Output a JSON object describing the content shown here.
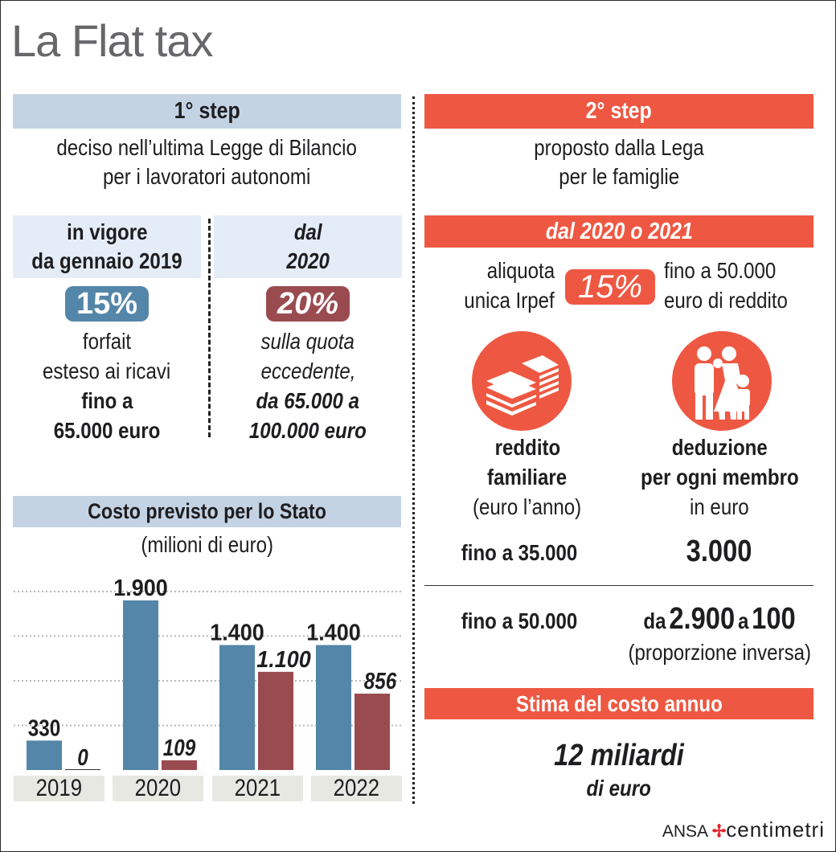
{
  "title": "La Flat tax",
  "step1": {
    "header": "1° step",
    "subtitle_lines": [
      "deciso nell’ultima Legge di Bilancio",
      "per i lavoratori autonomi"
    ],
    "col_a": {
      "header_lines": [
        "in vigore",
        "da gennaio 2019"
      ],
      "rate": "15%",
      "rate_color": "#5386a8",
      "desc_lines": [
        "forfait",
        "esteso ai ricavi"
      ],
      "desc_bold_lines": [
        "fino a",
        "65.000 euro"
      ]
    },
    "col_b": {
      "header_lines": [
        "dal",
        "2020"
      ],
      "rate": "20%",
      "rate_color": "#9a4b50",
      "desc_lines": [
        "sulla quota",
        "eccedente,"
      ],
      "desc_bold_lines": [
        "da 65.000 a",
        "100.000 euro"
      ]
    }
  },
  "cost": {
    "header": "Costo previsto per lo Stato",
    "unit": "(milioni di euro)"
  },
  "chart_data": {
    "type": "bar",
    "title": "Costo previsto per lo Stato",
    "subtitle": "(milioni di euro)",
    "categories": [
      "2019",
      "2020",
      "2021",
      "2022"
    ],
    "series": [
      {
        "name": "in vigore da gennaio 2019 (15%)",
        "color": "#5386a8",
        "values": [
          330,
          1900,
          1400,
          1400
        ],
        "labels": [
          "330",
          "1.900",
          "1.400",
          "1.400"
        ],
        "label_style": "bold"
      },
      {
        "name": "dal 2020 (20%)",
        "color": "#9a4b50",
        "values": [
          0,
          109,
          1100,
          856
        ],
        "labels": [
          "0",
          "109",
          "1.100",
          "856"
        ],
        "label_style": "bold-italic"
      }
    ],
    "xlabel": "",
    "ylabel": "",
    "ylim": [
      0,
      2000
    ],
    "grid": true,
    "legend": "none"
  },
  "step2": {
    "header": "2° step",
    "subtitle_lines": [
      "proposto dalla Lega",
      "per le famiglie"
    ],
    "period": "dal 2020 o 2021",
    "rate_left_lines": [
      "aliquota",
      "unica Irpef"
    ],
    "rate": "15%",
    "rate_color": "#ee5842",
    "rate_right_lines": [
      "fino a 50.000",
      "euro di reddito"
    ],
    "income_icon": "money-stack-icon",
    "family_icon": "family-icon",
    "income_head_lines": [
      "reddito",
      "familiare"
    ],
    "income_unit": "(euro l’anno)",
    "deduction_head_lines": [
      "deduzione",
      "per ogni membro"
    ],
    "deduction_unit": "in euro",
    "rows": [
      {
        "income": "fino a 35.000",
        "deduction": "3.000"
      },
      {
        "income": "fino a 50.000",
        "deduction_prefix": "da",
        "deduction_from": "2.900",
        "deduction_mid": "a",
        "deduction_to": "100",
        "deduction_note": "(proporzione inversa)"
      }
    ],
    "cost_header": "Stima del costo annuo",
    "cost_value": "12 miliardi",
    "cost_unit": "di euro"
  },
  "footer": {
    "brand": "ANSA",
    "brand2": "centimetri"
  },
  "colors": {
    "accent_red": "#ee5842",
    "blue": "#5386a8",
    "maroon": "#9a4b50",
    "header_blue": "#c4d3e4"
  }
}
